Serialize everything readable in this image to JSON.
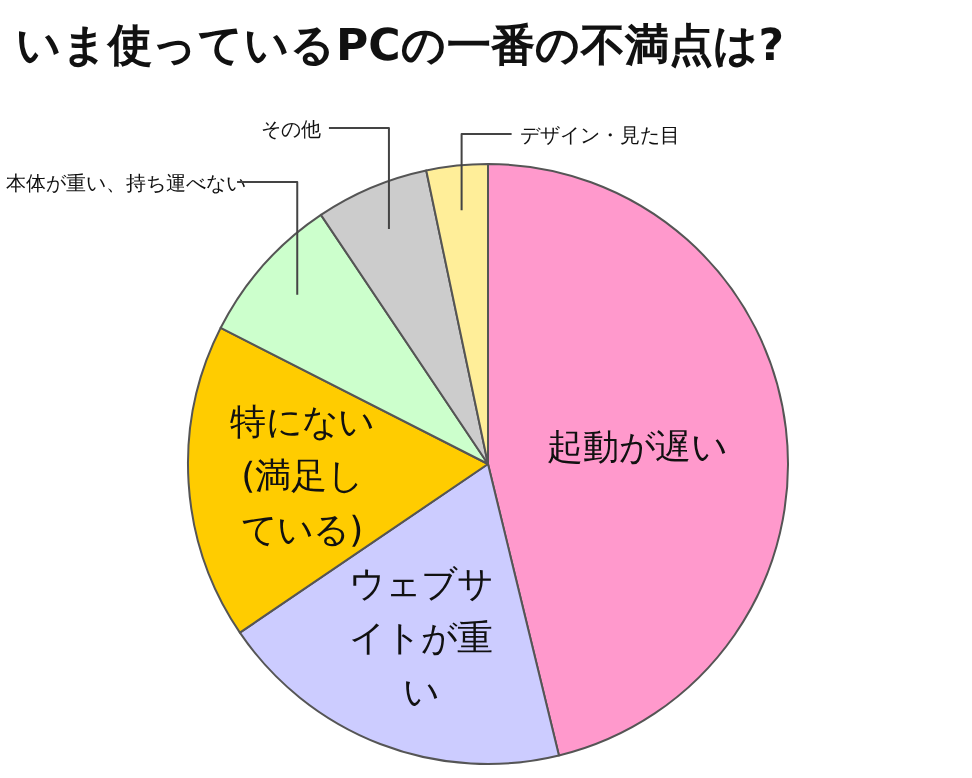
{
  "chart_data": {
    "type": "pie",
    "title": "いま使っているPCの一番の不満点は?",
    "categories": [
      "起動が遅い",
      "ウェブサイトが重い",
      "特にない(満足している)",
      "本体が重い、持ち運べない",
      "その他",
      "デザイン・見た目"
    ],
    "values": [
      46.2,
      19.3,
      17.0,
      8.1,
      6.1,
      3.3
    ],
    "colors": [
      "#ff99cc",
      "#ccccff",
      "#ffcc00",
      "#ccffcc",
      "#cccccc",
      "#ffee99"
    ]
  }
}
